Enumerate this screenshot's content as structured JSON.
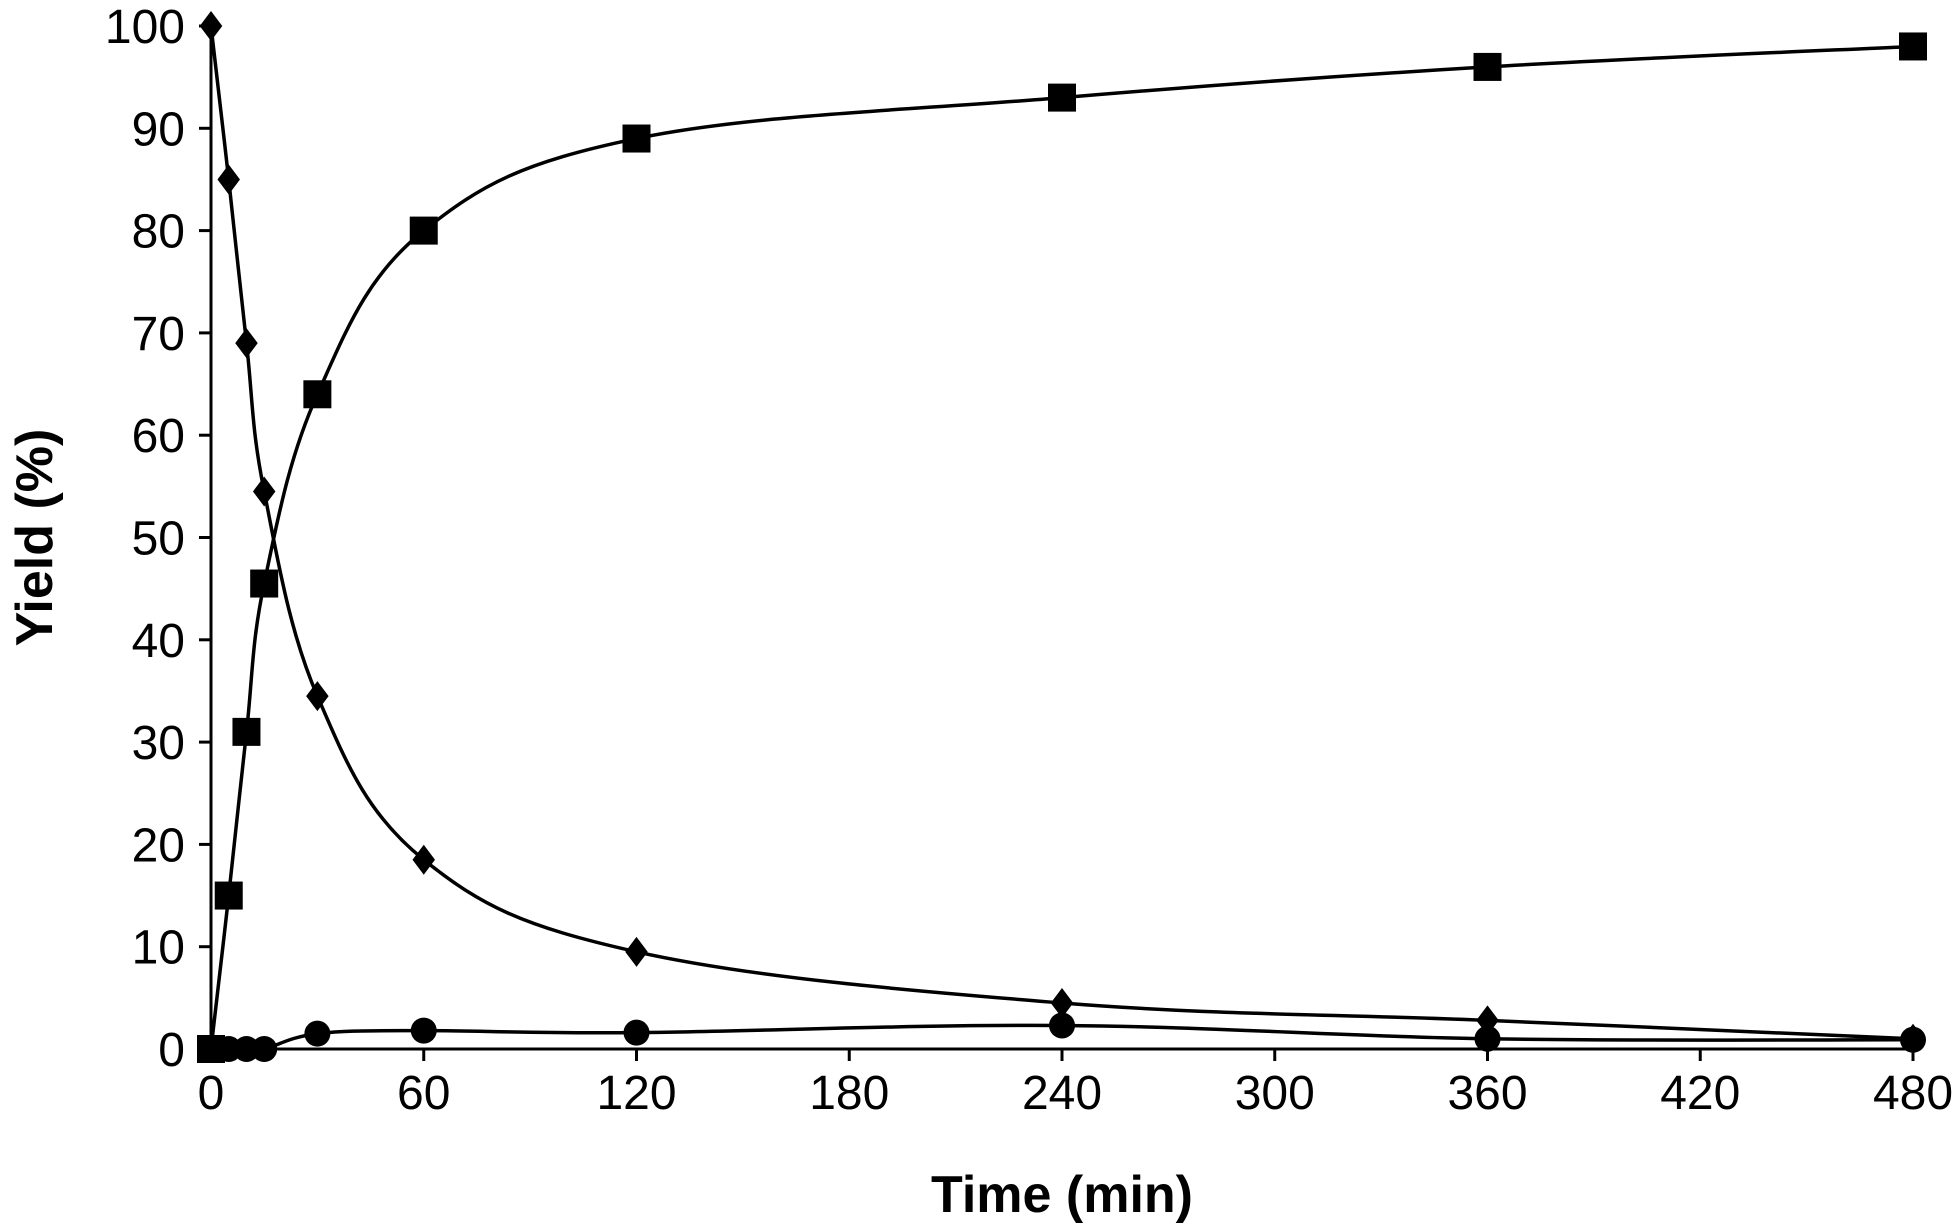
{
  "chart_data": {
    "type": "line",
    "title": "",
    "xlabel": "Time (min)",
    "ylabel": "Yield (%)",
    "xlim": [
      0,
      480
    ],
    "ylim": [
      0,
      100
    ],
    "x_ticks": [
      "0",
      "60",
      "120",
      "180",
      "240",
      "300",
      "360",
      "420",
      "480"
    ],
    "y_ticks": [
      "0",
      "10",
      "20",
      "30",
      "40",
      "50",
      "60",
      "70",
      "80",
      "90",
      "100"
    ],
    "grid": false,
    "legend": "none",
    "line_style": "smoothed",
    "series": [
      {
        "marker": "diamond",
        "color": "#000000",
        "x": [
          0,
          5,
          10,
          15,
          30,
          60,
          120,
          240,
          360,
          480
        ],
        "values": [
          100,
          85,
          69,
          54.5,
          34.5,
          18.5,
          9.5,
          4.5,
          2.8,
          1
        ]
      },
      {
        "marker": "square",
        "color": "#000000",
        "x": [
          0,
          5,
          10,
          15,
          30,
          60,
          120,
          240,
          360,
          480
        ],
        "values": [
          0,
          15,
          31,
          45.5,
          64,
          80,
          89,
          93,
          96,
          98
        ]
      },
      {
        "marker": "circle",
        "color": "#000000",
        "x": [
          0,
          5,
          10,
          15,
          30,
          60,
          120,
          240,
          360,
          480
        ],
        "values": [
          0,
          0,
          0,
          0,
          1.5,
          1.8,
          1.6,
          2.3,
          1,
          0.9
        ]
      }
    ]
  }
}
